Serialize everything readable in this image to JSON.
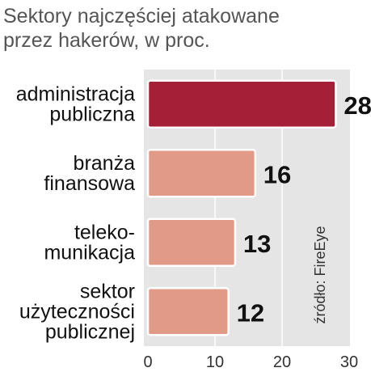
{
  "chart_data": {
    "type": "hbar",
    "title": "Sektory najczęściej atakowane\nprzez hakerów, w proc.",
    "categories": [
      "administracja\npubliczna",
      "branża\nfinansowa",
      "teleko-\nmunikacja",
      "sektor\nużyteczności\npublicznej"
    ],
    "values": [
      28,
      16,
      13,
      12
    ],
    "colors": [
      "#a51f36",
      "#e19a88",
      "#e19a88",
      "#e19a88"
    ],
    "xlim": [
      0,
      30
    ],
    "xticks": [
      0,
      10,
      20,
      30
    ],
    "grid": true,
    "source": "źródło: FireEye"
  }
}
